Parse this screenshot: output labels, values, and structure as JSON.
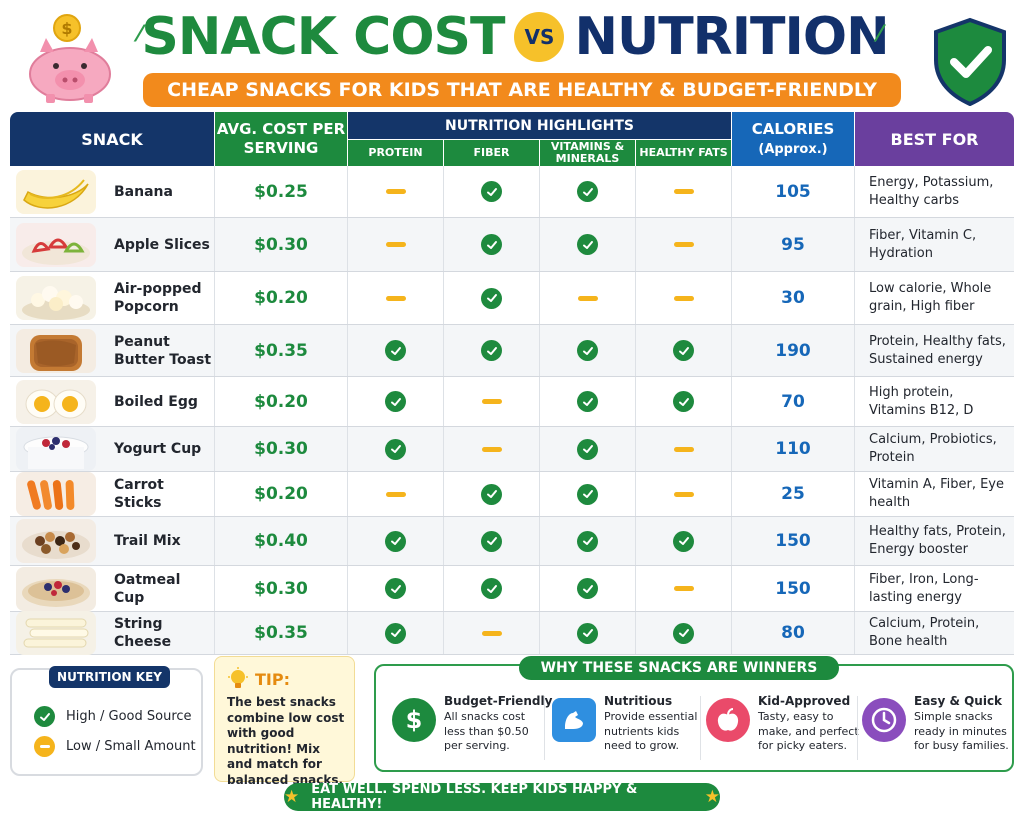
{
  "header": {
    "title_left": "SNACK COST",
    "title_vs": "VS",
    "title_right": "NUTRITION",
    "subtitle": "CHEAP SNACKS FOR KIDS THAT ARE HEALTHY & BUDGET-FRIENDLY"
  },
  "table": {
    "headers": {
      "snack": "SNACK",
      "cost": "AVG. COST PER SERVING",
      "nutrition": "NUTRITION HIGHLIGHTS",
      "protein": "PROTEIN",
      "fiber": "FIBER",
      "vitamins": "VITAMINS & MINERALS",
      "fats": "HEALTHY FATS",
      "calories": "CALORIES",
      "calories_sub": "(Approx.)",
      "best": "BEST FOR"
    },
    "rows": [
      {
        "name": "Banana",
        "cost": "$0.25",
        "protein": "low",
        "fiber": "high",
        "vitamins": "high",
        "fats": "low",
        "calories": "105",
        "best": "Energy, Potassium, Healthy carbs",
        "image": "banana"
      },
      {
        "name": "Apple Slices",
        "cost": "$0.30",
        "protein": "low",
        "fiber": "high",
        "vitamins": "high",
        "fats": "low",
        "calories": "95",
        "best": "Fiber, Vitamin C, Hydration",
        "image": "apple"
      },
      {
        "name": "Air-popped Popcorn",
        "cost": "$0.20",
        "protein": "low",
        "fiber": "high",
        "vitamins": "low",
        "fats": "low",
        "calories": "30",
        "best": "Low calorie, Whole grain, High fiber",
        "image": "popcorn"
      },
      {
        "name": "Peanut Butter Toast",
        "cost": "$0.35",
        "protein": "high",
        "fiber": "high",
        "vitamins": "high",
        "fats": "high",
        "calories": "190",
        "best": "Protein, Healthy fats, Sustained energy",
        "image": "toast"
      },
      {
        "name": "Boiled Egg",
        "cost": "$0.20",
        "protein": "high",
        "fiber": "low",
        "vitamins": "high",
        "fats": "high",
        "calories": "70",
        "best": "High protein, Vitamins B12, D",
        "image": "egg"
      },
      {
        "name": "Yogurt Cup",
        "cost": "$0.30",
        "protein": "high",
        "fiber": "low",
        "vitamins": "high",
        "fats": "low",
        "calories": "110",
        "best": "Calcium, Probiotics, Protein",
        "image": "yogurt"
      },
      {
        "name": "Carrot Sticks",
        "cost": "$0.20",
        "protein": "low",
        "fiber": "high",
        "vitamins": "high",
        "fats": "low",
        "calories": "25",
        "best": "Vitamin A, Fiber, Eye health",
        "image": "carrot"
      },
      {
        "name": "Trail Mix",
        "cost": "$0.40",
        "protein": "high",
        "fiber": "high",
        "vitamins": "high",
        "fats": "high",
        "calories": "150",
        "best": "Healthy fats, Protein, Energy booster",
        "image": "trailmix"
      },
      {
        "name": "Oatmeal Cup",
        "cost": "$0.30",
        "protein": "high",
        "fiber": "high",
        "vitamins": "high",
        "fats": "low",
        "calories": "150",
        "best": "Fiber, Iron, Long-lasting energy",
        "image": "oatmeal"
      },
      {
        "name": "String Cheese",
        "cost": "$0.35",
        "protein": "high",
        "fiber": "low",
        "vitamins": "high",
        "fats": "high",
        "calories": "80",
        "best": "Calcium, Protein, Bone health",
        "image": "cheese"
      }
    ]
  },
  "key": {
    "title": "NUTRITION KEY",
    "high": "High / Good Source",
    "low": "Low / Small Amount"
  },
  "tip": {
    "title": "TIP:",
    "text": "The best snacks combine low cost with good nutrition! Mix and match for balanced snacks."
  },
  "why": {
    "title": "WHY THESE SNACKS ARE WINNERS",
    "items": [
      {
        "title": "Budget-Friendly",
        "text": "All snacks cost less than $0.50 per serving.",
        "icon": "dollar-icon",
        "color": "#1d8a3e"
      },
      {
        "title": "Nutritious",
        "text": "Provide essential nutrients kids need to grow.",
        "icon": "muscle-icon",
        "color": "#2f8fe0"
      },
      {
        "title": "Kid-Approved",
        "text": "Tasty, easy to make, and perfect for picky eaters.",
        "icon": "apple-icon",
        "color": "#ea4a6a"
      },
      {
        "title": "Easy & Quick",
        "text": "Simple snacks ready in minutes for busy families.",
        "icon": "clock-icon",
        "color": "#8a4dbd"
      }
    ]
  },
  "footer": "EAT WELL. SPEND LESS. KEEP KIDS HAPPY & HEALTHY!",
  "colors": {
    "green": "#1d8a3e",
    "navy": "#143569",
    "blue": "#1667b8",
    "purple": "#6a3f9e",
    "orange": "#f28a1c",
    "yellow": "#f5b41c"
  }
}
